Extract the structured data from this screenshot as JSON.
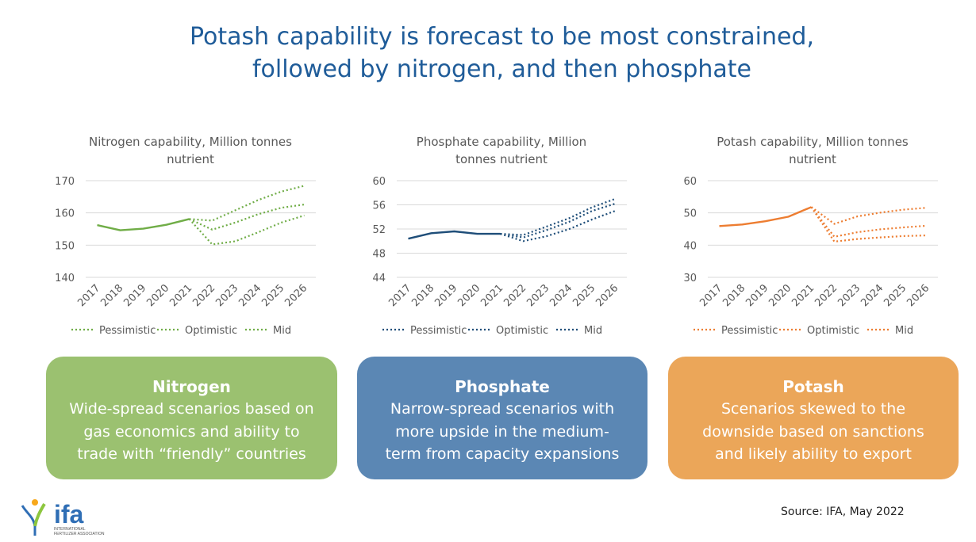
{
  "title": {
    "line1": "Potash capability is forecast to be most constrained,",
    "line2": "followed by nitrogen, and then phosphate"
  },
  "colors": {
    "title": "#1f5c99",
    "nitrogen": "#70ad47",
    "phosphate": "#1f4e79",
    "potash": "#ed7d31",
    "nitrogen_card": "#9bc170",
    "phosphate_card": "#5b87b4",
    "potash_card": "#eba659"
  },
  "chart_data": [
    {
      "type": "line",
      "title_lines": [
        "Nitrogen capability, Million tonnes",
        "nutrient"
      ],
      "categories": [
        "2017",
        "2018",
        "2019",
        "2020",
        "2021",
        "2022",
        "2023",
        "2024",
        "2025",
        "2026"
      ],
      "ylim": [
        140,
        170
      ],
      "yticks": [
        140,
        150,
        160,
        170
      ],
      "color": "#70ad47",
      "historical": [
        156.2,
        154.6,
        155.1,
        156.3,
        158.1,
        null,
        null,
        null,
        null,
        null
      ],
      "series": [
        {
          "name": "Pessimistic",
          "values": [
            null,
            null,
            null,
            null,
            158.1,
            150.2,
            151.2,
            154.0,
            157.0,
            159.2
          ]
        },
        {
          "name": "Optimistic",
          "values": [
            null,
            null,
            null,
            null,
            158.1,
            157.6,
            160.8,
            164.0,
            166.6,
            168.4
          ]
        },
        {
          "name": "Mid",
          "values": [
            null,
            null,
            null,
            null,
            158.1,
            154.8,
            157.0,
            159.6,
            161.6,
            162.6
          ]
        }
      ],
      "legend": [
        "Pessimistic",
        "Optimistic",
        "Mid"
      ],
      "legend_position": "bottom"
    },
    {
      "type": "line",
      "title_lines": [
        "Phosphate capability, Million",
        "tonnes nutrient"
      ],
      "categories": [
        "2017",
        "2018",
        "2019",
        "2020",
        "2021",
        "2022",
        "2023",
        "2024",
        "2025",
        "2026"
      ],
      "ylim": [
        44,
        60
      ],
      "yticks": [
        44,
        48,
        52,
        56,
        60
      ],
      "color": "#1f4e79",
      "historical": [
        50.4,
        51.3,
        51.6,
        51.2,
        51.2,
        null,
        null,
        null,
        null,
        null
      ],
      "series": [
        {
          "name": "Pessimistic",
          "values": [
            null,
            null,
            null,
            null,
            51.2,
            50.0,
            50.8,
            52.0,
            53.6,
            55.0
          ]
        },
        {
          "name": "Optimistic",
          "values": [
            null,
            null,
            null,
            null,
            51.2,
            51.0,
            52.4,
            53.8,
            55.6,
            57.0
          ]
        },
        {
          "name": "Mid",
          "values": [
            null,
            null,
            null,
            null,
            51.2,
            50.6,
            51.8,
            53.2,
            55.0,
            56.2
          ]
        }
      ],
      "legend": [
        "Pessimistic",
        "Optimistic",
        "Mid"
      ],
      "legend_position": "bottom"
    },
    {
      "type": "line",
      "title_lines": [
        "Potash capability, Million tonnes",
        "nutrient"
      ],
      "categories": [
        "2017",
        "2018",
        "2019",
        "2020",
        "2021",
        "2022",
        "2023",
        "2024",
        "2025",
        "2026"
      ],
      "ylim": [
        30,
        60
      ],
      "yticks": [
        30,
        40,
        50,
        60
      ],
      "color": "#ed7d31",
      "historical": [
        45.9,
        46.4,
        47.4,
        48.8,
        51.8,
        null,
        null,
        null,
        null,
        null
      ],
      "series": [
        {
          "name": "Pessimistic",
          "values": [
            null,
            null,
            null,
            null,
            51.8,
            41.1,
            41.9,
            42.4,
            42.8,
            43.0
          ]
        },
        {
          "name": "Optimistic",
          "values": [
            null,
            null,
            null,
            null,
            51.8,
            46.6,
            48.9,
            50.1,
            51.0,
            51.6
          ]
        },
        {
          "name": "Mid",
          "values": [
            null,
            null,
            null,
            null,
            51.8,
            42.6,
            44.0,
            44.9,
            45.5,
            46.0
          ]
        }
      ],
      "legend": [
        "Pessimistic",
        "Optimistic",
        "Mid"
      ],
      "legend_position": "bottom"
    }
  ],
  "cards": [
    {
      "heading": "Nitrogen",
      "lines": [
        "Wide-spread scenarios based on",
        "gas economics and ability to",
        "trade with “friendly” countries"
      ]
    },
    {
      "heading": "Phosphate",
      "lines": [
        "Narrow-spread scenarios with",
        "more upside in the medium-",
        "term from capacity expansions"
      ]
    },
    {
      "heading": "Potash",
      "lines": [
        "Scenarios skewed to the",
        "downside based on sanctions",
        "and likely ability to export"
      ]
    }
  ],
  "source": "Source: IFA, May 2022",
  "logo": {
    "text": "ifa",
    "subtext_line1": "INTERNATIONAL",
    "subtext_line2": "FERTILIZER ASSOCIATION"
  }
}
